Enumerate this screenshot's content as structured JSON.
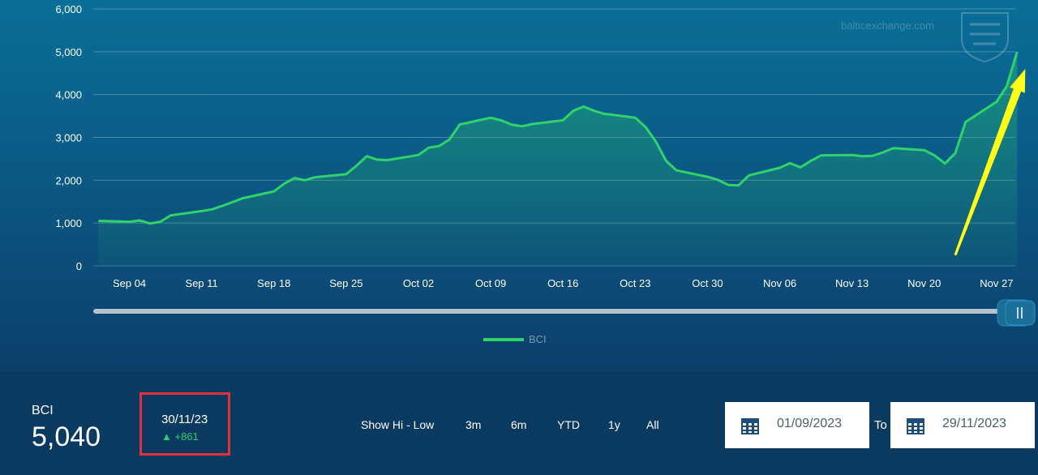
{
  "chart_data": {
    "type": "area",
    "series": [
      {
        "name": "BCI",
        "x": [
          "2023-09-01",
          "2023-09-04",
          "2023-09-05",
          "2023-09-06",
          "2023-09-07",
          "2023-09-08",
          "2023-09-11",
          "2023-09-12",
          "2023-09-13",
          "2023-09-14",
          "2023-09-15",
          "2023-09-18",
          "2023-09-19",
          "2023-09-20",
          "2023-09-21",
          "2023-09-22",
          "2023-09-25",
          "2023-09-26",
          "2023-09-27",
          "2023-09-28",
          "2023-09-29",
          "2023-10-02",
          "2023-10-03",
          "2023-10-04",
          "2023-10-05",
          "2023-10-06",
          "2023-10-09",
          "2023-10-10",
          "2023-10-11",
          "2023-10-12",
          "2023-10-13",
          "2023-10-16",
          "2023-10-17",
          "2023-10-18",
          "2023-10-19",
          "2023-10-20",
          "2023-10-23",
          "2023-10-24",
          "2023-10-25",
          "2023-10-26",
          "2023-10-27",
          "2023-10-30",
          "2023-10-31",
          "2023-11-01",
          "2023-11-02",
          "2023-11-03",
          "2023-11-06",
          "2023-11-07",
          "2023-11-08",
          "2023-11-09",
          "2023-11-10",
          "2023-11-13",
          "2023-11-14",
          "2023-11-15",
          "2023-11-16",
          "2023-11-17",
          "2023-11-20",
          "2023-11-21",
          "2023-11-22",
          "2023-11-23",
          "2023-11-24",
          "2023-11-27",
          "2023-11-28",
          "2023-11-29"
        ],
        "values": [
          1050,
          1030,
          1060,
          990,
          1030,
          1180,
          1280,
          1320,
          1400,
          1490,
          1580,
          1740,
          1920,
          2050,
          2000,
          2070,
          2140,
          2340,
          2560,
          2480,
          2470,
          2590,
          2760,
          2800,
          2950,
          3300,
          3460,
          3400,
          3300,
          3260,
          3310,
          3400,
          3620,
          3720,
          3620,
          3550,
          3460,
          3240,
          2900,
          2450,
          2230,
          2080,
          2010,
          1890,
          1880,
          2110,
          2290,
          2400,
          2300,
          2450,
          2580,
          2590,
          2560,
          2570,
          2650,
          2750,
          2700,
          2580,
          2390,
          2630,
          3360,
          3830,
          4200,
          5000
        ]
      }
    ],
    "xticks": [
      "Sep 04",
      "Sep 11",
      "Sep 18",
      "Sep 25",
      "Oct 02",
      "Oct 09",
      "Oct 16",
      "Oct 23",
      "Oct 30",
      "Nov 06",
      "Nov 13",
      "Nov 20",
      "Nov 27"
    ],
    "yticks": [
      "0",
      "1,000",
      "2,000",
      "3,000",
      "4,000",
      "5,000",
      "6,000"
    ],
    "ylim": [
      0,
      6000
    ],
    "grid": true,
    "legend_position": "bottom-center",
    "line_color": "#2fd36a",
    "annotation": {
      "type": "arrow",
      "color": "#ffff1a",
      "from_date": "2023-11-23",
      "from_value": 250,
      "to_date": "2023-11-29",
      "to_value": 4600
    }
  },
  "watermark": "balticexchange.com",
  "summary": {
    "index_name": "BCI",
    "index_value": "5,040",
    "change_date": "30/11/23",
    "change_value": "+861",
    "change_color": "#2ecc71"
  },
  "controls": {
    "show_hi_low": "Show Hi - Low",
    "ranges": [
      "3m",
      "6m",
      "YTD",
      "1y",
      "All"
    ]
  },
  "date_range": {
    "from": "01/09/2023",
    "to_label": "To",
    "to": "29/11/2023"
  },
  "colors": {
    "panel_top": "#0a6f98",
    "panel_bottom": "#0c3f6a",
    "bar_bg": "#0b3a60",
    "highlight_box": "#e0323c"
  }
}
